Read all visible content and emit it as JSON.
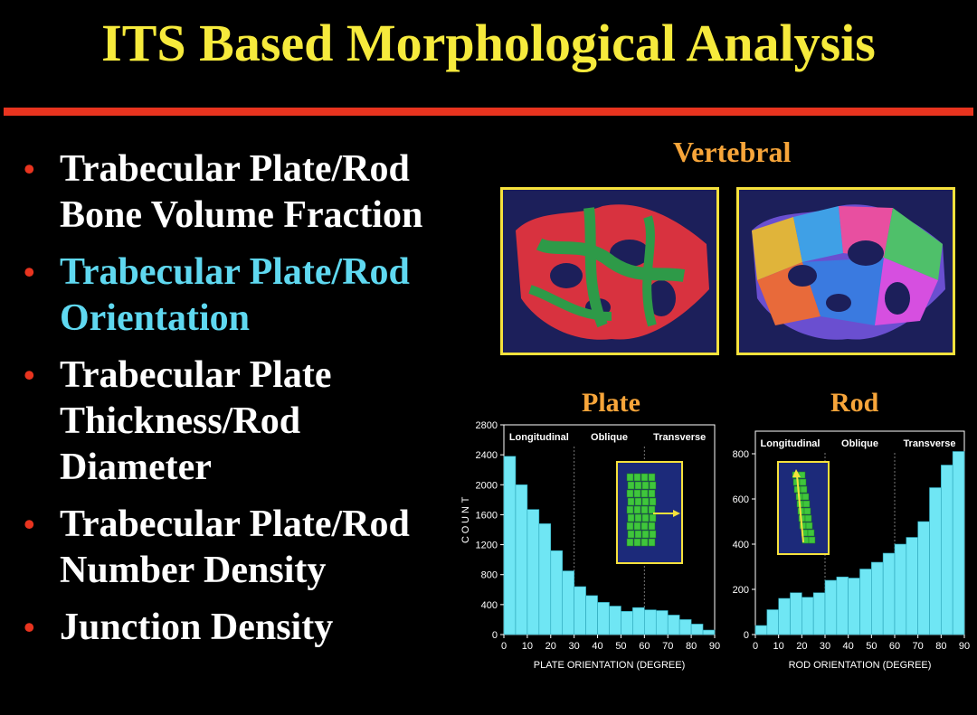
{
  "slide": {
    "title": "ITS Based Morphological Analysis",
    "accent_colors": {
      "title": "#f6ea3c",
      "rule": "#e8341f",
      "highlight": "#5fd8f0",
      "label": "#f7a53a"
    },
    "bullets": [
      {
        "lines": [
          "Trabecular Plate/Rod",
          "Bone Volume Fraction"
        ],
        "highlighted": false
      },
      {
        "lines": [
          "Trabecular Plate/Rod",
          "Orientation"
        ],
        "highlighted": true
      },
      {
        "lines": [
          "Trabecular Plate",
          "Thickness/Rod",
          "Diameter"
        ],
        "highlighted": false
      },
      {
        "lines": [
          "Trabecular Plate/Rod",
          "Number Density"
        ],
        "highlighted": false
      },
      {
        "lines": [
          "Junction Density"
        ],
        "highlighted": false
      }
    ],
    "vertebral_label": "Vertebral",
    "plate_label": "Plate",
    "rod_label": "Rod"
  },
  "chart_data": [
    {
      "type": "bar",
      "title": "Plate",
      "xlabel": "PLATE ORIENTATION (DEGREE)",
      "ylabel": "COUNT",
      "xlim": [
        0,
        90
      ],
      "ylim": [
        0,
        2800
      ],
      "xticks": [
        0,
        10,
        20,
        30,
        40,
        50,
        60,
        70,
        80,
        90
      ],
      "yticks": [
        0,
        400,
        800,
        1200,
        1600,
        2000,
        2400,
        2800
      ],
      "bin_width": 5,
      "x": [
        0,
        5,
        10,
        15,
        20,
        25,
        30,
        35,
        40,
        45,
        50,
        55,
        60,
        65,
        70,
        75,
        80,
        85
      ],
      "values": [
        2380,
        2000,
        1670,
        1480,
        1120,
        850,
        640,
        520,
        430,
        380,
        310,
        360,
        330,
        320,
        260,
        200,
        140,
        60
      ],
      "region_labels": [
        "Longitudinal",
        "Oblique",
        "Transverse"
      ],
      "region_bounds": [
        30,
        60
      ],
      "bar_color": "#6fe6f4"
    },
    {
      "type": "bar",
      "title": "Rod",
      "xlabel": "ROD ORIENTATION (DEGREE)",
      "ylabel": "",
      "xlim": [
        0,
        90
      ],
      "ylim": [
        0,
        900
      ],
      "xticks": [
        0,
        10,
        20,
        30,
        40,
        50,
        60,
        70,
        80,
        90
      ],
      "yticks": [
        0,
        200,
        400,
        600,
        800
      ],
      "bin_width": 5,
      "x": [
        0,
        5,
        10,
        15,
        20,
        25,
        30,
        35,
        40,
        45,
        50,
        55,
        60,
        65,
        70,
        75,
        80,
        85
      ],
      "values": [
        40,
        110,
        160,
        185,
        165,
        185,
        240,
        255,
        250,
        290,
        320,
        360,
        400,
        430,
        500,
        650,
        750,
        810
      ],
      "region_labels": [
        "Longitudinal",
        "Oblique",
        "Transverse"
      ],
      "region_bounds": [
        30,
        60
      ],
      "bar_color": "#6fe6f4"
    }
  ]
}
